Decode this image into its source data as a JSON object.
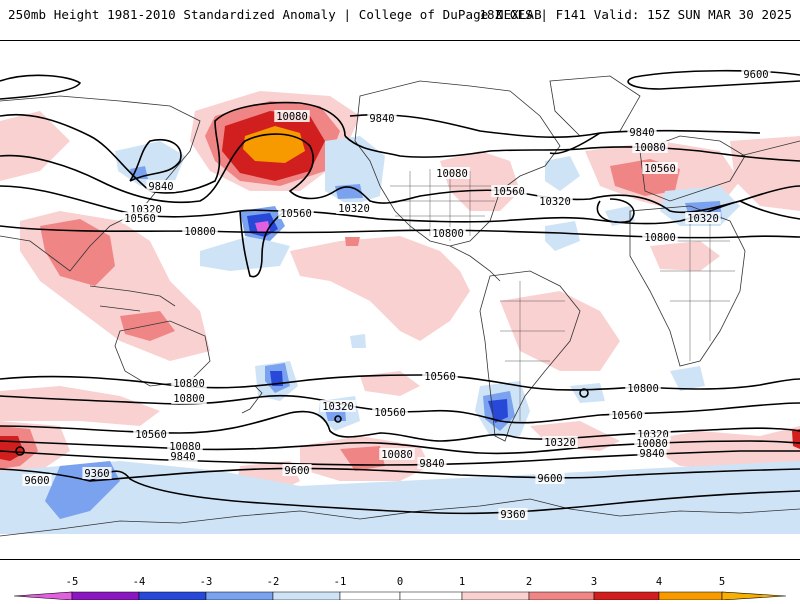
{
  "header": {
    "title_left": "250mb Height 1981-2010 Standardized Anomaly | College of DuPage NEXLAB",
    "title_right": "18Z GFS | F141 Valid: 15Z SUN MAR 30 2025"
  },
  "colors": {
    "pos1": "#f9d1d1",
    "pos2": "#f08585",
    "pos3": "#d11f1f",
    "pos4": "#f79a00",
    "neg1": "#cfe3f7",
    "neg2": "#7aa2ee",
    "neg3": "#2848d8",
    "neg4": "#8a18c0",
    "neg5": "#e060e0",
    "contour": "#000000",
    "coast": "#333333"
  },
  "contour_labels": [
    {
      "text": "9600",
      "id": "l1"
    },
    {
      "text": "9840",
      "id": "l2"
    },
    {
      "text": "10080",
      "id": "l3"
    },
    {
      "text": "9840",
      "id": "l4"
    },
    {
      "text": "10320",
      "id": "l5"
    },
    {
      "text": "10560",
      "id": "l6"
    },
    {
      "text": "10800",
      "id": "l7"
    },
    {
      "text": "10560",
      "id": "l8"
    },
    {
      "text": "10320",
      "id": "l9"
    },
    {
      "text": "10080",
      "id": "l10"
    },
    {
      "text": "10560",
      "id": "l11"
    },
    {
      "text": "10320",
      "id": "l12"
    },
    {
      "text": "9840",
      "id": "l13"
    },
    {
      "text": "10080",
      "id": "l14"
    },
    {
      "text": "10560",
      "id": "l15"
    },
    {
      "text": "10320",
      "id": "l16"
    },
    {
      "text": "10800",
      "id": "l17"
    },
    {
      "text": "10800",
      "id": "l18"
    },
    {
      "text": "10800",
      "id": "l19"
    },
    {
      "text": "10560",
      "id": "l20"
    },
    {
      "text": "10800",
      "id": "l21"
    },
    {
      "text": "10800",
      "id": "l22"
    },
    {
      "text": "10560",
      "id": "l23"
    },
    {
      "text": "10320",
      "id": "l24"
    },
    {
      "text": "10560",
      "id": "l25"
    },
    {
      "text": "10560",
      "id": "l26"
    },
    {
      "text": "10320",
      "id": "l27"
    },
    {
      "text": "10080",
      "id": "l28"
    },
    {
      "text": "10080",
      "id": "l29"
    },
    {
      "text": "9840",
      "id": "l30"
    },
    {
      "text": "9840",
      "id": "l31"
    },
    {
      "text": "9600",
      "id": "l32"
    },
    {
      "text": "9600",
      "id": "l33"
    },
    {
      "text": "9600",
      "id": "l34"
    },
    {
      "text": "9360",
      "id": "l35"
    },
    {
      "text": "9360",
      "id": "l36"
    },
    {
      "text": "10320",
      "id": "l37"
    },
    {
      "text": "10080",
      "id": "l38"
    },
    {
      "text": "9840",
      "id": "l39"
    }
  ],
  "colorbar": {
    "ticks": [
      "-5",
      "-4",
      "-3",
      "-2",
      "-1",
      "0",
      "1",
      "2",
      "3",
      "4",
      "5"
    ]
  }
}
